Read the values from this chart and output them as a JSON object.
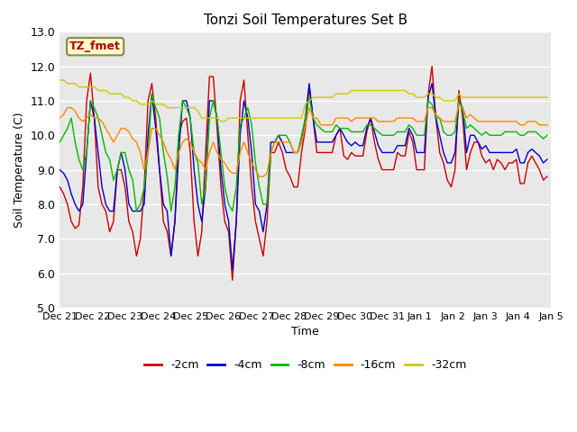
{
  "title": "Tonzi Soil Temperatures Set B",
  "xlabel": "Time",
  "ylabel": "Soil Temperature (C)",
  "ylim": [
    5.0,
    13.0
  ],
  "yticks": [
    5.0,
    6.0,
    7.0,
    8.0,
    9.0,
    10.0,
    11.0,
    12.0,
    13.0
  ],
  "xtick_labels": [
    "Dec 21",
    "Dec 22",
    "Dec 23",
    "Dec 24",
    "Dec 25",
    "Dec 26",
    "Dec 27",
    "Dec 28",
    "Dec 29",
    "Dec 30",
    "Dec 31",
    "Jan 1",
    "Jan 2",
    "Jan 3",
    "Jan 4",
    "Jan 5"
  ],
  "colors": {
    "-2cm": "#cc0000",
    "-4cm": "#0000cc",
    "-8cm": "#00bb00",
    "-16cm": "#ff8800",
    "-32cm": "#cccc00"
  },
  "annotation_text": "TZ_fmet",
  "annotation_color": "#aa0000",
  "annotation_bg": "#ffffcc",
  "annotation_border": "#888844",
  "bg_color": "#e8e8e8",
  "fig_color": "#ffffff",
  "grid_color": "#ffffff",
  "n_days": 16,
  "points_per_day": 8,
  "series": {
    "-2cm": [
      8.5,
      8.3,
      8.0,
      7.5,
      7.3,
      7.4,
      8.5,
      11.0,
      11.8,
      10.5,
      8.5,
      8.0,
      7.8,
      7.2,
      7.5,
      9.0,
      9.0,
      8.5,
      7.5,
      7.2,
      6.5,
      7.0,
      8.5,
      11.0,
      11.5,
      10.5,
      9.0,
      7.5,
      7.2,
      6.5,
      7.5,
      10.0,
      10.4,
      10.5,
      9.5,
      7.5,
      6.5,
      7.2,
      9.5,
      11.7,
      11.7,
      10.2,
      8.5,
      7.5,
      7.2,
      5.8,
      7.5,
      11.0,
      11.6,
      10.0,
      8.5,
      7.5,
      7.0,
      6.5,
      7.5,
      9.5,
      9.5,
      9.8,
      9.5,
      9.0,
      8.8,
      8.5,
      8.5,
      9.5,
      10.2,
      11.4,
      10.5,
      9.5,
      9.5,
      9.5,
      9.5,
      9.5,
      10.0,
      10.2,
      9.4,
      9.3,
      9.5,
      9.4,
      9.4,
      9.4,
      10.1,
      10.5,
      9.8,
      9.3,
      9.0,
      9.0,
      9.0,
      9.0,
      9.5,
      9.4,
      9.4,
      10.1,
      9.8,
      9.0,
      9.0,
      9.0,
      11.2,
      12.0,
      10.5,
      9.5,
      9.2,
      8.7,
      8.5,
      9.0,
      11.3,
      10.5,
      9.0,
      9.5,
      9.8,
      9.8,
      9.4,
      9.2,
      9.3,
      9.0,
      9.3,
      9.2,
      9.0,
      9.2,
      9.2,
      9.3,
      8.6,
      8.6,
      9.2,
      9.4,
      9.2,
      9.0,
      8.7,
      8.8
    ],
    "-4cm": [
      9.0,
      8.9,
      8.7,
      8.3,
      8.0,
      7.8,
      8.0,
      9.5,
      11.0,
      10.5,
      9.5,
      8.5,
      8.0,
      7.8,
      7.8,
      9.0,
      9.5,
      9.0,
      8.0,
      7.8,
      7.8,
      7.8,
      8.0,
      10.0,
      11.2,
      10.2,
      9.0,
      8.0,
      7.8,
      6.5,
      7.5,
      9.5,
      11.0,
      11.0,
      10.5,
      9.0,
      8.0,
      7.5,
      8.5,
      11.0,
      11.0,
      10.5,
      9.0,
      8.0,
      7.5,
      6.1,
      7.5,
      10.0,
      11.0,
      10.5,
      9.5,
      8.0,
      7.8,
      7.2,
      8.0,
      9.8,
      9.8,
      10.0,
      9.8,
      9.5,
      9.5,
      9.5,
      9.5,
      9.8,
      10.5,
      11.5,
      10.5,
      9.8,
      9.8,
      9.8,
      9.8,
      9.8,
      10.0,
      10.2,
      10.0,
      9.8,
      9.7,
      9.8,
      9.7,
      9.7,
      10.2,
      10.5,
      10.1,
      9.7,
      9.5,
      9.5,
      9.5,
      9.5,
      9.7,
      9.7,
      9.7,
      10.2,
      10.0,
      9.5,
      9.5,
      9.5,
      11.1,
      11.5,
      10.5,
      10.0,
      9.5,
      9.2,
      9.2,
      9.5,
      11.0,
      10.8,
      9.5,
      10.0,
      10.0,
      9.8,
      9.6,
      9.7,
      9.5,
      9.5,
      9.5,
      9.5,
      9.5,
      9.5,
      9.5,
      9.6,
      9.2,
      9.2,
      9.5,
      9.6,
      9.5,
      9.4,
      9.2,
      9.3
    ],
    "-8cm": [
      9.8,
      10.0,
      10.2,
      10.5,
      9.8,
      9.3,
      9.0,
      9.5,
      11.0,
      10.8,
      10.5,
      10.0,
      9.5,
      9.3,
      8.7,
      9.0,
      9.5,
      9.5,
      9.0,
      8.7,
      7.8,
      8.0,
      8.5,
      9.5,
      11.2,
      10.8,
      10.5,
      9.5,
      8.8,
      7.8,
      8.5,
      10.0,
      11.0,
      10.8,
      10.5,
      9.5,
      9.2,
      8.0,
      8.5,
      10.5,
      11.0,
      10.5,
      9.5,
      8.5,
      8.0,
      7.8,
      8.5,
      10.3,
      10.5,
      10.8,
      10.3,
      9.2,
      8.5,
      8.0,
      8.0,
      9.5,
      9.8,
      10.0,
      10.0,
      10.0,
      9.8,
      9.5,
      9.5,
      10.0,
      10.5,
      11.1,
      10.5,
      10.3,
      10.2,
      10.1,
      10.1,
      10.1,
      10.3,
      10.2,
      10.2,
      10.2,
      10.1,
      10.1,
      10.1,
      10.1,
      10.3,
      10.3,
      10.2,
      10.1,
      10.0,
      10.0,
      10.0,
      10.0,
      10.1,
      10.1,
      10.1,
      10.3,
      10.2,
      10.0,
      10.0,
      10.0,
      11.0,
      10.9,
      10.5,
      10.5,
      10.1,
      10.0,
      10.0,
      10.1,
      11.0,
      10.7,
      10.2,
      10.3,
      10.2,
      10.1,
      10.0,
      10.1,
      10.0,
      10.0,
      10.0,
      10.0,
      10.1,
      10.1,
      10.1,
      10.1,
      10.0,
      10.0,
      10.1,
      10.1,
      10.1,
      10.0,
      9.9,
      10.0
    ],
    "-16cm": [
      10.5,
      10.6,
      10.8,
      10.8,
      10.7,
      10.5,
      10.4,
      10.5,
      10.6,
      10.5,
      10.5,
      10.4,
      10.2,
      10.0,
      9.8,
      10.0,
      10.2,
      10.2,
      10.1,
      9.9,
      9.8,
      9.5,
      9.0,
      9.5,
      10.2,
      10.2,
      10.0,
      9.8,
      9.5,
      9.3,
      9.0,
      9.5,
      9.8,
      9.9,
      9.8,
      9.5,
      9.3,
      9.2,
      9.0,
      9.5,
      9.8,
      9.5,
      9.3,
      9.2,
      9.0,
      8.9,
      8.9,
      9.5,
      9.8,
      9.5,
      9.2,
      9.0,
      8.8,
      8.8,
      8.9,
      9.5,
      9.8,
      9.8,
      9.8,
      9.8,
      9.8,
      9.5,
      9.5,
      9.8,
      10.3,
      10.8,
      10.5,
      10.5,
      10.3,
      10.3,
      10.3,
      10.3,
      10.5,
      10.5,
      10.5,
      10.5,
      10.4,
      10.5,
      10.5,
      10.5,
      10.5,
      10.5,
      10.5,
      10.4,
      10.4,
      10.4,
      10.4,
      10.4,
      10.5,
      10.5,
      10.5,
      10.5,
      10.5,
      10.4,
      10.4,
      10.4,
      10.8,
      10.8,
      10.6,
      10.5,
      10.4,
      10.4,
      10.4,
      10.4,
      10.9,
      10.8,
      10.5,
      10.6,
      10.5,
      10.4,
      10.4,
      10.4,
      10.4,
      10.4,
      10.4,
      10.4,
      10.4,
      10.4,
      10.4,
      10.4,
      10.3,
      10.3,
      10.4,
      10.4,
      10.4,
      10.3,
      10.3,
      10.3
    ],
    "-32cm": [
      11.6,
      11.6,
      11.5,
      11.5,
      11.5,
      11.4,
      11.4,
      11.4,
      11.4,
      11.4,
      11.3,
      11.3,
      11.3,
      11.2,
      11.2,
      11.2,
      11.2,
      11.1,
      11.1,
      11.0,
      11.0,
      10.9,
      10.9,
      10.9,
      11.0,
      10.9,
      10.9,
      10.9,
      10.8,
      10.8,
      10.8,
      10.8,
      10.8,
      10.8,
      10.8,
      10.8,
      10.7,
      10.5,
      10.5,
      10.5,
      10.5,
      10.5,
      10.4,
      10.4,
      10.5,
      10.5,
      10.5,
      10.5,
      10.5,
      10.5,
      10.5,
      10.5,
      10.5,
      10.5,
      10.5,
      10.5,
      10.5,
      10.5,
      10.5,
      10.5,
      10.5,
      10.5,
      10.5,
      10.5,
      10.9,
      11.0,
      11.1,
      11.1,
      11.1,
      11.1,
      11.1,
      11.1,
      11.2,
      11.2,
      11.2,
      11.2,
      11.3,
      11.3,
      11.3,
      11.3,
      11.3,
      11.3,
      11.3,
      11.3,
      11.3,
      11.3,
      11.3,
      11.3,
      11.3,
      11.3,
      11.3,
      11.2,
      11.2,
      11.1,
      11.1,
      11.1,
      11.2,
      11.2,
      11.1,
      11.1,
      11.0,
      11.0,
      11.0,
      11.0,
      11.2,
      11.1,
      11.1,
      11.1,
      11.1,
      11.1,
      11.1,
      11.1,
      11.1,
      11.1,
      11.1,
      11.1,
      11.1,
      11.1,
      11.1,
      11.1,
      11.1,
      11.1,
      11.1,
      11.1,
      11.1,
      11.1,
      11.1,
      11.1
    ]
  }
}
